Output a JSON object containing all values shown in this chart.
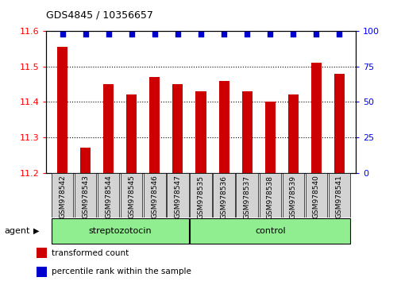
{
  "title": "GDS4845 / 10356657",
  "categories": [
    "GSM978542",
    "GSM978543",
    "GSM978544",
    "GSM978545",
    "GSM978546",
    "GSM978547",
    "GSM978535",
    "GSM978536",
    "GSM978537",
    "GSM978538",
    "GSM978539",
    "GSM978540",
    "GSM978541"
  ],
  "bar_values": [
    11.555,
    11.27,
    11.45,
    11.42,
    11.47,
    11.45,
    11.43,
    11.46,
    11.43,
    11.4,
    11.42,
    11.51,
    11.48
  ],
  "bar_color": "#cc0000",
  "percentile_color": "#0000cc",
  "ylim_left": [
    11.2,
    11.6
  ],
  "ylim_right": [
    0,
    100
  ],
  "yticks_left": [
    11.2,
    11.3,
    11.4,
    11.5,
    11.6
  ],
  "yticks_right": [
    0,
    25,
    50,
    75,
    100
  ],
  "group1_label": "streptozotocin",
  "group2_label": "control",
  "group1_indices": [
    0,
    1,
    2,
    3,
    4,
    5
  ],
  "group2_indices": [
    6,
    7,
    8,
    9,
    10,
    11,
    12
  ],
  "group1_color": "#90ee90",
  "group2_color": "#90ee90",
  "agent_label": "agent",
  "legend1_label": "transformed count",
  "legend2_label": "percentile rank within the sample",
  "tick_label_bg": "#d3d3d3",
  "bar_width": 0.45
}
